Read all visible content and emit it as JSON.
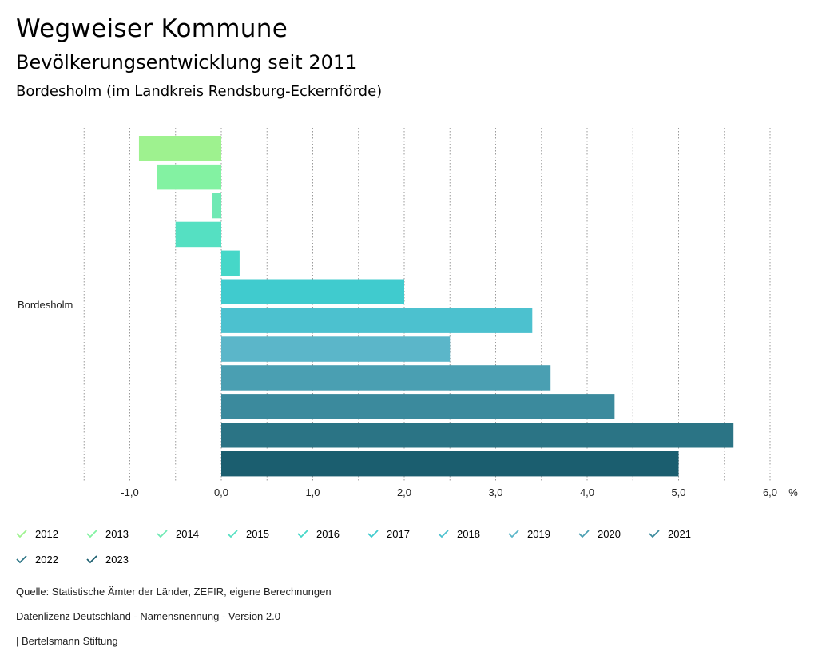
{
  "header": {
    "title": "Wegweiser Kommune",
    "subtitle": "Bevölkerungsentwicklung seit 2011",
    "region": "Bordesholm (im Landkreis Rendsburg-Eckernförde)"
  },
  "chart_data": {
    "type": "bar",
    "orientation": "horizontal",
    "category": "Bordesholm",
    "unit": "%",
    "xlim": [
      -1.5,
      6.3
    ],
    "grid": true,
    "ticks": [
      -1,
      0,
      1,
      2,
      3,
      4,
      5,
      6
    ],
    "tick_labels": [
      "-1,0",
      "0,0",
      "1,0",
      "2,0",
      "3,0",
      "4,0",
      "5,0",
      "6,0"
    ],
    "series": [
      {
        "name": "2012",
        "value": -0.9,
        "color": "#9ef28f"
      },
      {
        "name": "2013",
        "value": -0.7,
        "color": "#83f2a2"
      },
      {
        "name": "2014",
        "value": -0.1,
        "color": "#6fe9b4"
      },
      {
        "name": "2015",
        "value": -0.5,
        "color": "#55e0c2"
      },
      {
        "name": "2016",
        "value": 0.2,
        "color": "#46d7c8"
      },
      {
        "name": "2017",
        "value": 2.0,
        "color": "#40cbce"
      },
      {
        "name": "2018",
        "value": 3.4,
        "color": "#4cc1cf"
      },
      {
        "name": "2019",
        "value": 2.5,
        "color": "#5bb6c9"
      },
      {
        "name": "2020",
        "value": 3.6,
        "color": "#4a9fb2"
      },
      {
        "name": "2021",
        "value": 4.3,
        "color": "#3b8a9d"
      },
      {
        "name": "2022",
        "value": 5.6,
        "color": "#2b7485"
      },
      {
        "name": "2023",
        "value": 5.0,
        "color": "#1b5e6f"
      }
    ]
  },
  "footer": {
    "source": "Quelle: Statistische Ämter der Länder, ZEFIR, eigene Berechnungen",
    "license": "Datenlizenz Deutschland - Namensnennung - Version 2.0",
    "brand": "| Bertelsmann Stiftung"
  }
}
